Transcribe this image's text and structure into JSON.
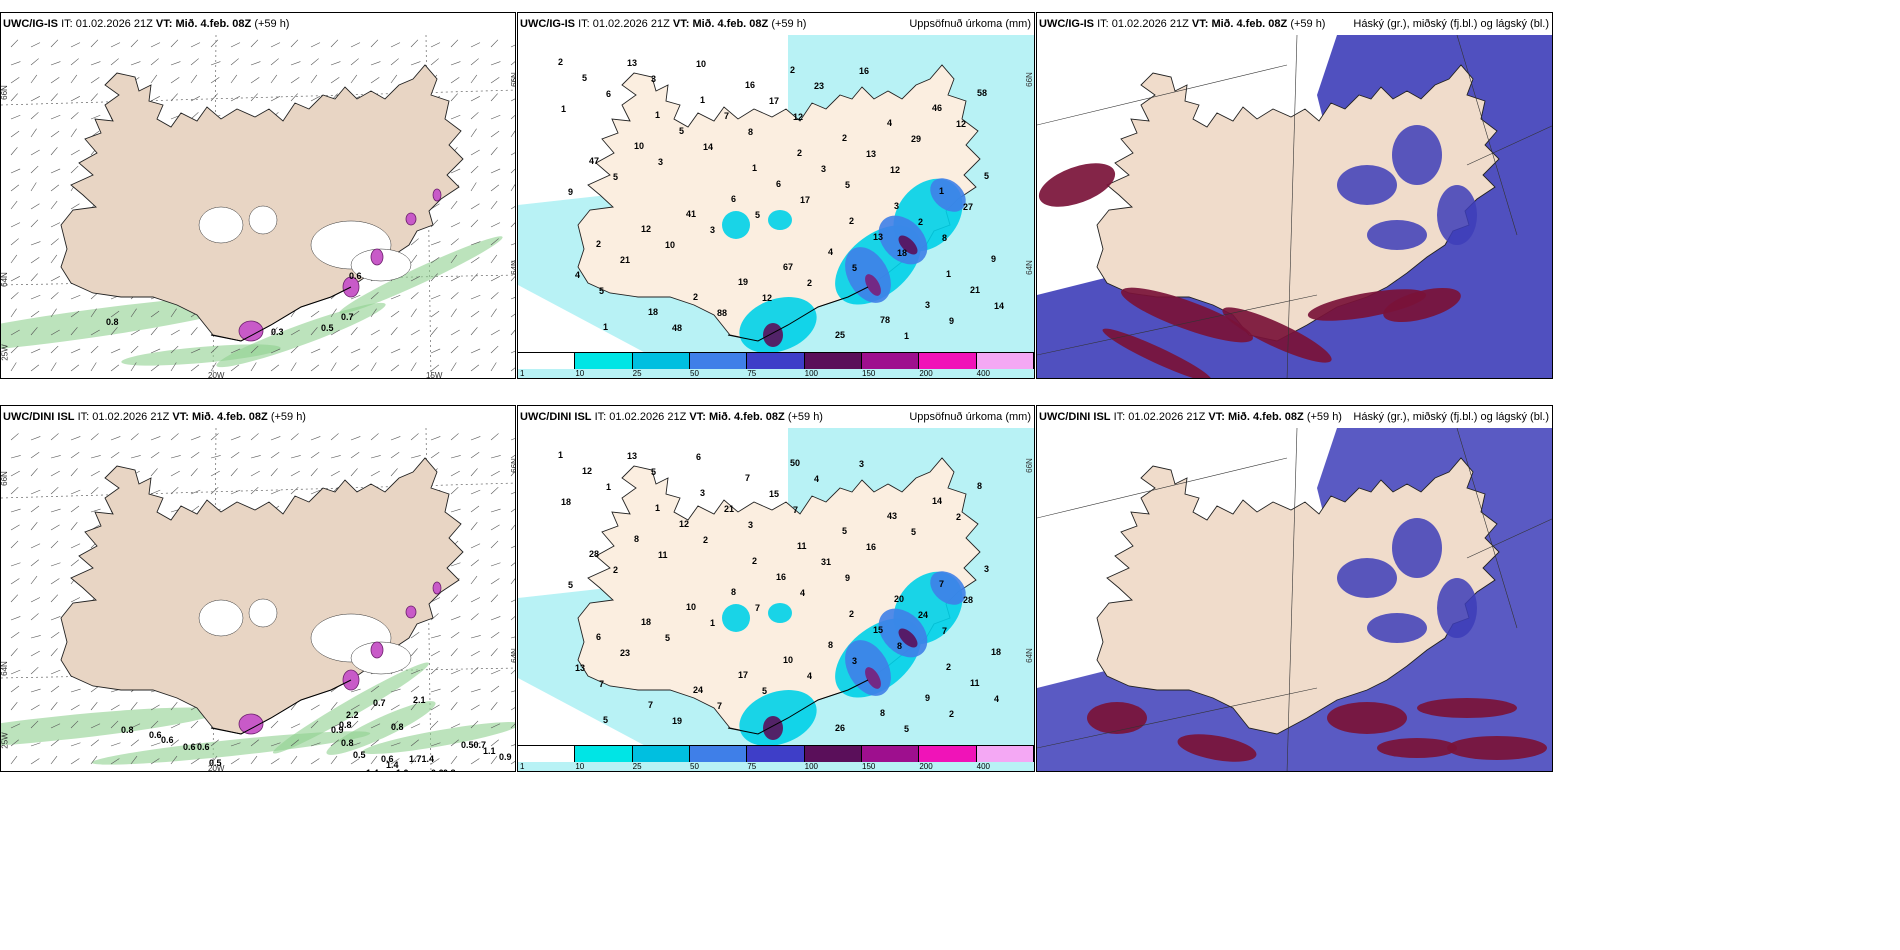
{
  "header_common": {
    "it_label": "IT:",
    "it_value": "01.02.2026 21Z",
    "vt_label": "VT:",
    "vt_value": "Mið. 4.feb. 08Z",
    "lead": "(+59 h)"
  },
  "panels": [
    {
      "id": "p1",
      "model": "UWC/IG-IS",
      "title_right": "",
      "type": "wind"
    },
    {
      "id": "p2",
      "model": "UWC/IG-IS",
      "title_right": "Uppsöfnuð úrkoma (mm)",
      "type": "precip"
    },
    {
      "id": "p3",
      "model": "UWC/IG-IS",
      "title_right": "Háský (gr.), miðský (fj.bl.) og lágský (bl.)",
      "type": "cloud"
    },
    {
      "id": "p4",
      "model": "UWC/DINI ISL",
      "title_right": "",
      "type": "wind"
    },
    {
      "id": "p5",
      "model": "UWC/DINI ISL",
      "title_right": "Uppsöfnuð úrkoma (mm)",
      "type": "precip"
    },
    {
      "id": "p6",
      "model": "UWC/DINI ISL",
      "title_right": "Háský (gr.), miðský (fj.bl.) og lágský (bl.)",
      "type": "cloud"
    }
  ],
  "grid_labels": {
    "lat_66": "66N",
    "lat_64": "64N",
    "lon_25": "25W",
    "lon_20": "20W",
    "lon_15": "15W"
  },
  "precip_legend": {
    "colors": [
      "#ffffff",
      "#00e5e5",
      "#00bfe0",
      "#3f7fe8",
      "#3e3ec8",
      "#5a0f5a",
      "#9e0f8e",
      "#f013b8",
      "#f4a8f4"
    ],
    "ticks": [
      "1",
      "10",
      "25",
      "50",
      "75",
      "100",
      "150",
      "200",
      "400"
    ]
  },
  "colors": {
    "land": "#f5e6d8",
    "land_wind": "#e8d5c4",
    "sea_precip": "#b8f2f5",
    "cloud_low": "#3d3db8",
    "cloud_high": "#7a1238",
    "green": "#4caf50",
    "magenta": "#c040c0"
  },
  "p1_values": [
    "0.8",
    "0.7",
    "0.5",
    "0.6",
    "0.3"
  ],
  "p4_values": [
    "0.8",
    "0.6",
    "0.6",
    "0.6",
    "0.6",
    "0.5",
    "0.5",
    "0.9",
    "0.8",
    "0.8",
    "0.6",
    "1.4",
    "1.0",
    "1.4",
    "0.6",
    "0.8",
    "0.50.7",
    "1.71.4",
    "1.1",
    "0.9",
    "0.8",
    "2.2",
    "2.1",
    "0.7"
  ],
  "p2_values": [
    "2",
    "1",
    "1",
    "2",
    "1",
    "1",
    "1",
    "2",
    "3",
    "9",
    "18",
    "16",
    "2",
    "1",
    "2",
    "2",
    "2",
    "4",
    "5",
    "12",
    "19",
    "25",
    "46",
    "47",
    "41",
    "67",
    "78",
    "58",
    "10",
    "6",
    "4",
    "3",
    "5",
    "5",
    "6",
    "13",
    "21",
    "13",
    "7",
    "3",
    "2",
    "4",
    "48",
    "17",
    "13",
    "27",
    "21",
    "88",
    "23",
    "29",
    "9",
    "10",
    "12",
    "16",
    "12",
    "5",
    "3",
    "2",
    "1",
    "1",
    "3",
    "5",
    "5",
    "9",
    "6",
    "14",
    "17",
    "18",
    "14",
    "3",
    "8",
    "5",
    "8",
    "5",
    "10",
    "12",
    "12"
  ],
  "p5_values": [
    "1",
    "1",
    "2",
    "2",
    "2",
    "5",
    "3",
    "11",
    "20",
    "18",
    "7",
    "7",
    "5",
    "7",
    "6",
    "24",
    "50",
    "43",
    "3",
    "18",
    "17",
    "26",
    "14",
    "28",
    "10",
    "10",
    "8",
    "8",
    "8",
    "8",
    "8",
    "9",
    "12",
    "12",
    "16",
    "15",
    "11",
    "13",
    "21",
    "31",
    "24",
    "13",
    "19",
    "15",
    "16",
    "28",
    "23",
    "7",
    "4",
    "5",
    "5",
    "5",
    "5",
    "3",
    "2",
    "2",
    "1",
    "4",
    "5",
    "18",
    "11",
    "7",
    "3",
    "2",
    "1",
    "2",
    "4",
    "8",
    "4",
    "5",
    "3",
    "9",
    "7",
    "7",
    "6",
    "7"
  ]
}
